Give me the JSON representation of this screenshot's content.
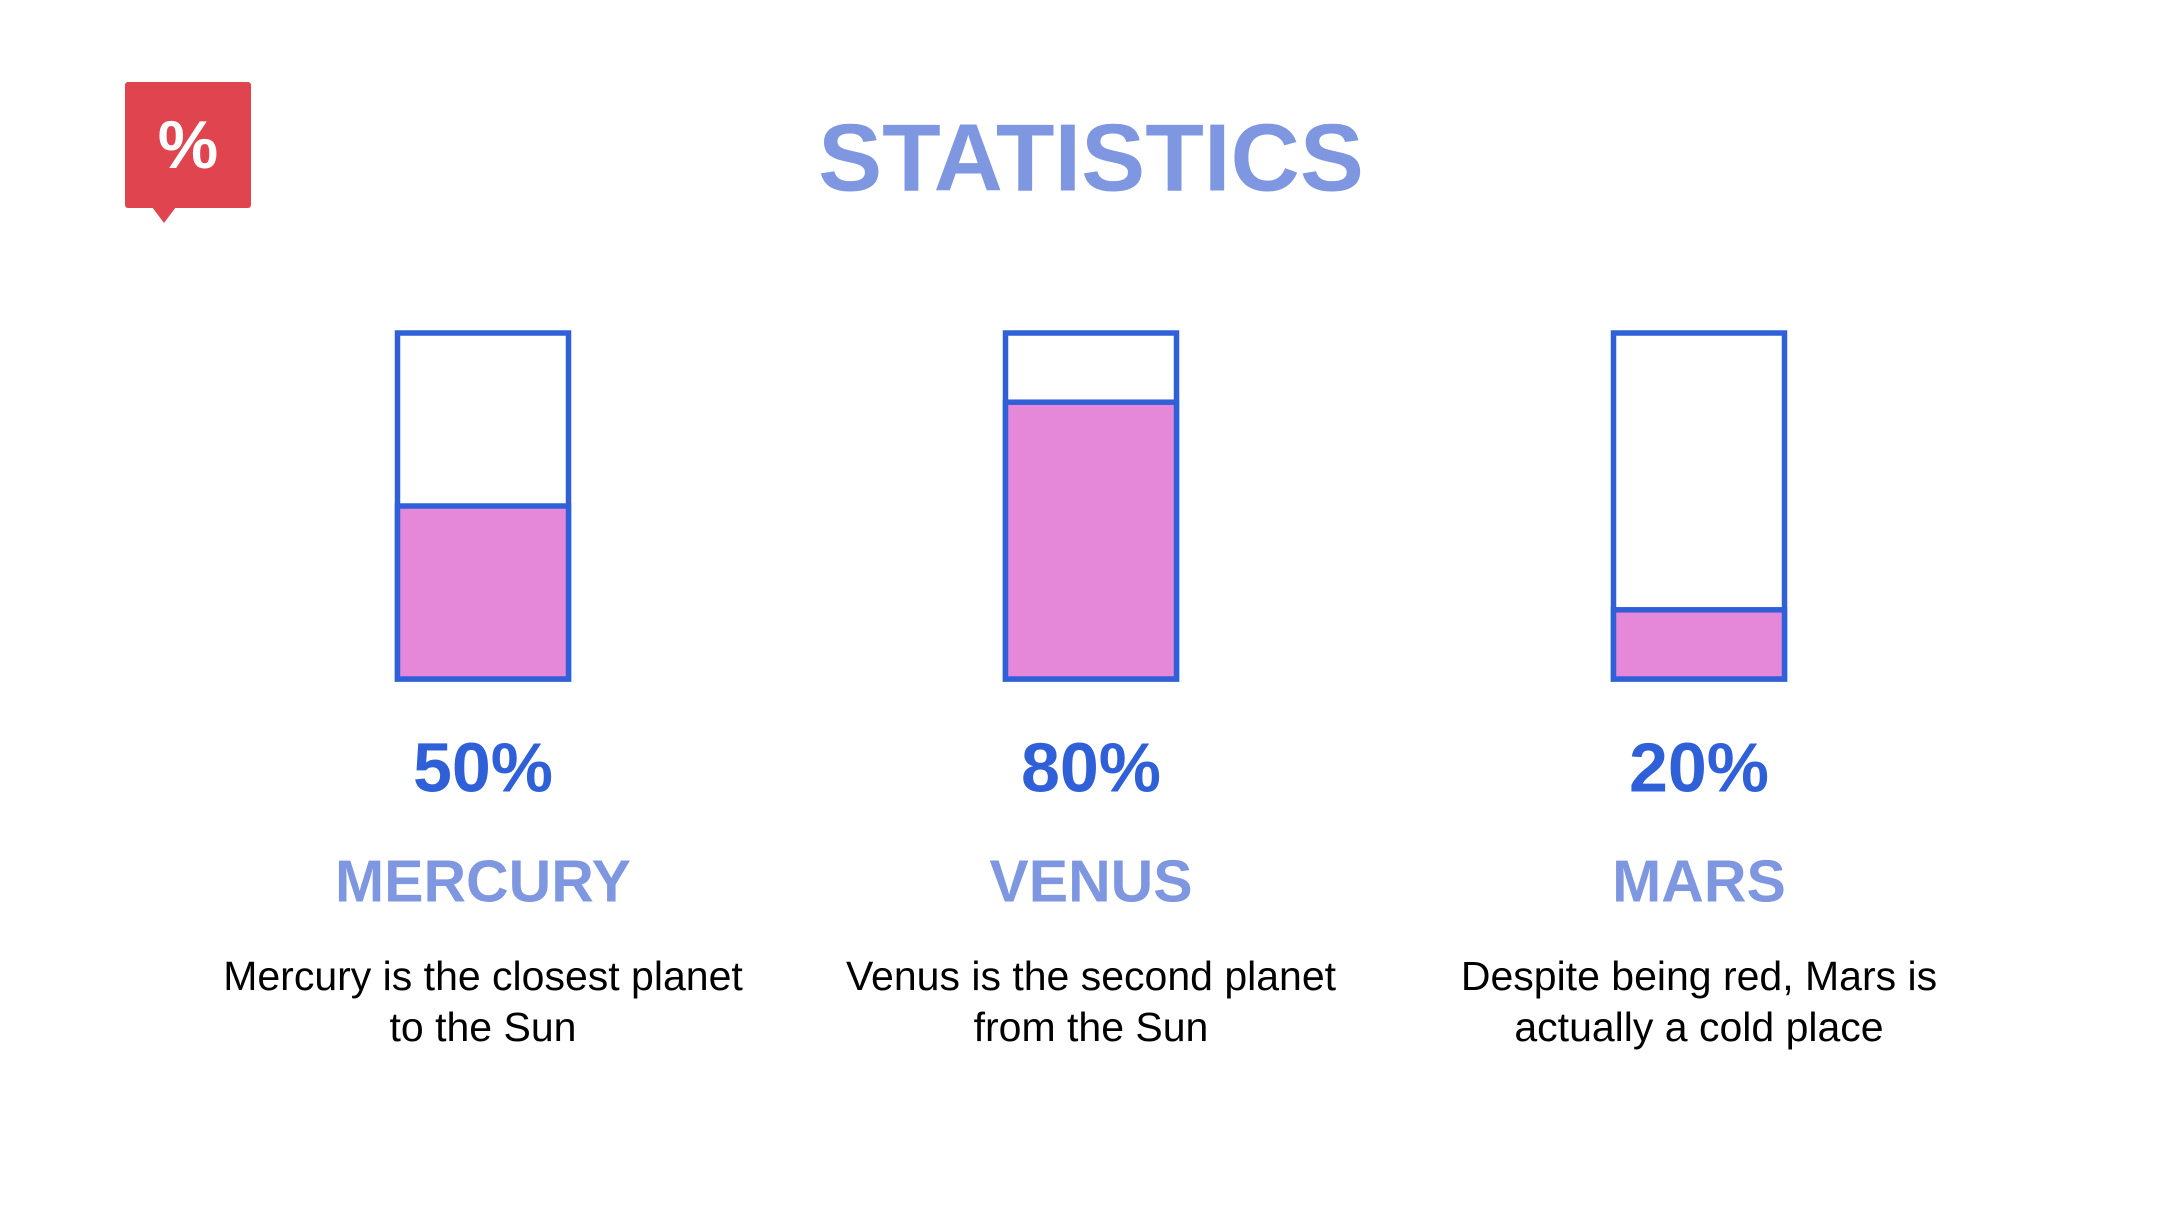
{
  "chart_data": {
    "type": "gauge",
    "title": "STATISTICS",
    "badge": "%",
    "categories": [
      "MERCURY",
      "VENUS",
      "MARS"
    ],
    "values": [
      50,
      80,
      20
    ],
    "value_labels": [
      "50%",
      "80%",
      "20%"
    ],
    "descriptions": [
      [
        "Mercury is the closest planet",
        "to the Sun"
      ],
      [
        "Venus is the second planet",
        "from the Sun"
      ],
      [
        "Despite being red, Mars is",
        "actually a cold place"
      ]
    ],
    "ylim": [
      0,
      100
    ],
    "color": "#e688da",
    "outline_color": "#3060d8"
  }
}
